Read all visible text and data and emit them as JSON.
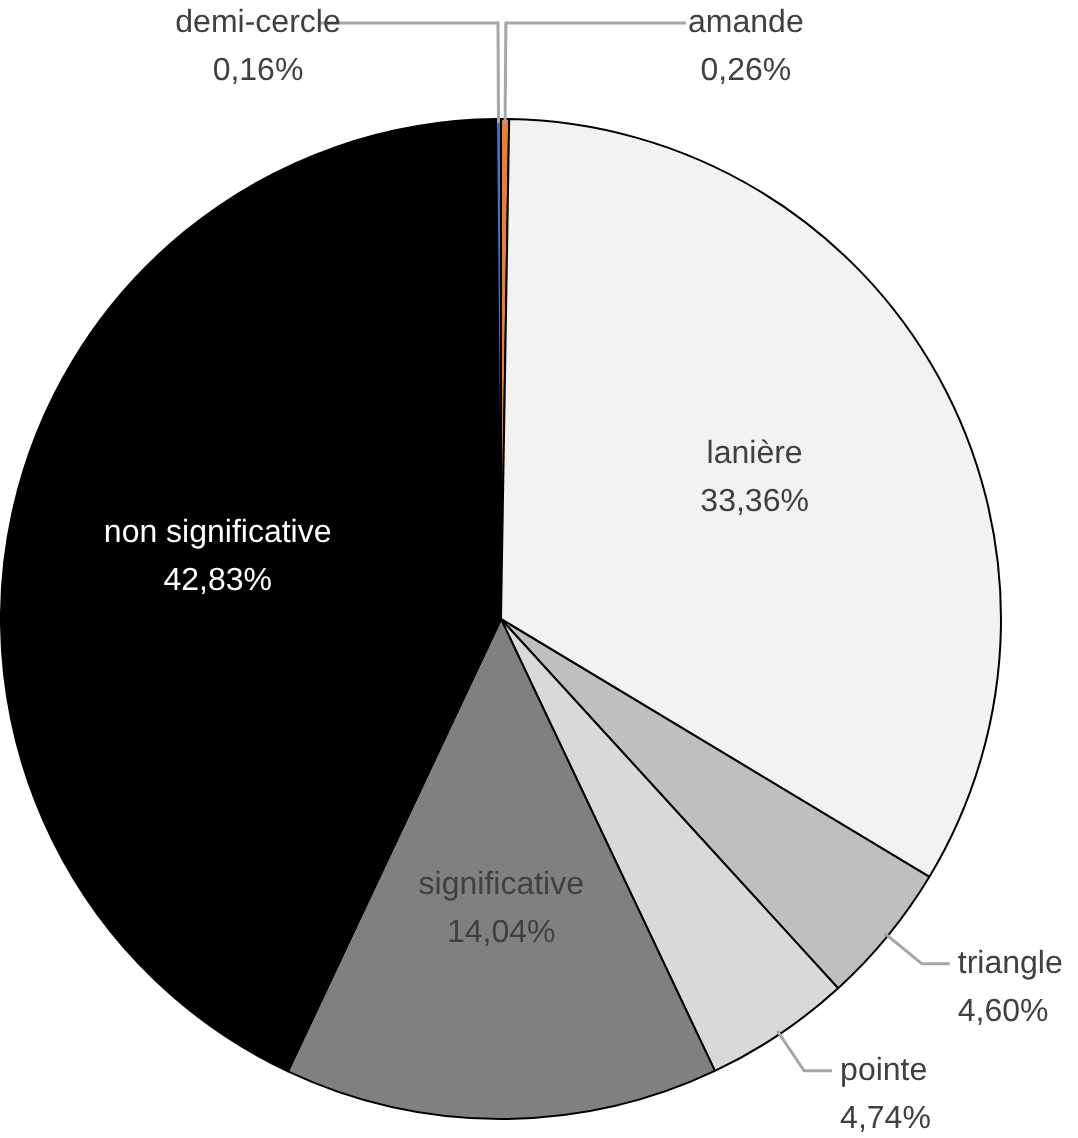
{
  "chart_data": {
    "type": "pie",
    "categories": [
      "amande",
      "lanière",
      "triangle",
      "pointe",
      "significative",
      "non significative",
      "demi-cercle"
    ],
    "values": [
      0.26,
      33.36,
      4.6,
      4.74,
      14.04,
      42.83,
      0.16
    ],
    "value_labels": [
      "0,26%",
      "33,36%",
      "4,60%",
      "4,74%",
      "14,04%",
      "42,83%",
      "0,16%"
    ],
    "colors": [
      "#ed7d31",
      "#f2f2f2",
      "#bfbfbf",
      "#d9d9d9",
      "#808080",
      "#000000",
      "#4472c4"
    ],
    "legend": false
  }
}
